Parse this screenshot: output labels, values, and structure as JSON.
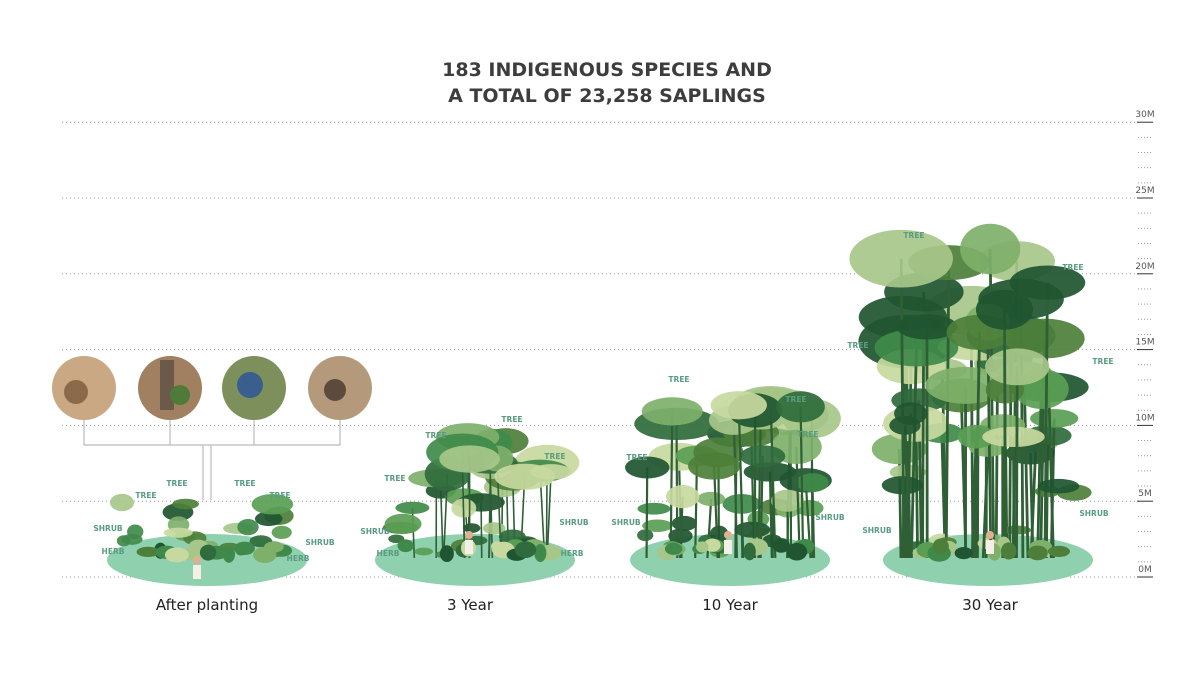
{
  "title": [
    "183 INDIGENOUS SPECIES AND",
    "A TOTAL OF 23,258 SAPLINGS"
  ],
  "axis": {
    "ticks": [
      "0M",
      "5M",
      "10M",
      "15M",
      "20M",
      "25M",
      "30M"
    ]
  },
  "stages": [
    {
      "label": "After planting",
      "layers": [
        "TREE",
        "TREE",
        "TREE",
        "TREE",
        "SHRUB",
        "SHRUB",
        "HERB",
        "HERB"
      ]
    },
    {
      "label": "3 Year",
      "layers": [
        "TREE",
        "TREE",
        "TREE",
        "TREE",
        "SHRUB",
        "SHRUB",
        "HERB",
        "HERB"
      ]
    },
    {
      "label": "10 Year",
      "layers": [
        "TREE",
        "TREE",
        "TREE",
        "TREE",
        "SHRUB",
        "SHRUB"
      ]
    },
    {
      "label": "30 Year",
      "layers": [
        "TREE",
        "TREE",
        "TREE",
        "TREE",
        "SHRUB",
        "SHRUB"
      ]
    }
  ]
}
